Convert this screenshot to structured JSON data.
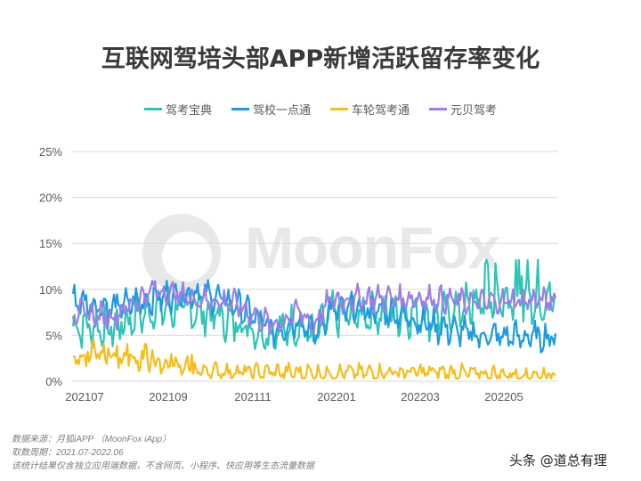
{
  "title": "互联网驾培头部APP新增活跃留存率变化",
  "legend": [
    {
      "label": "驾考宝典",
      "color": "#2EC4B6"
    },
    {
      "label": "驾校一点通",
      "color": "#1E9BE0"
    },
    {
      "label": "车轮驾考通",
      "color": "#F5BD1F"
    },
    {
      "label": "元贝驾考",
      "color": "#9B7EE6"
    }
  ],
  "watermark": "MoonFox",
  "footnote": {
    "source": "数据来源：月狐iAPP （MoonFox iApp）",
    "period": "取数周期：2021.07-2022.06",
    "note": "该统计结果仅含独立应用端数据，不含网页、小程序、快应用等生态流量数据"
  },
  "signature": "头条 @道总有理",
  "chart_data": {
    "type": "line",
    "title": "互联网驾培头部APP新增活跃留存率变化",
    "xlabel": "",
    "ylabel": "",
    "ylim": [
      0,
      25
    ],
    "yticks": [
      "0%",
      "5%",
      "10%",
      "15%",
      "20%",
      "25%"
    ],
    "xticks": [
      "202107",
      "202109",
      "202111",
      "202201",
      "202203",
      "202205"
    ],
    "x_range": [
      "2021-07-01",
      "2022-06-30"
    ],
    "granularity": "daily",
    "grid": true,
    "legend_position": "top",
    "series": [
      {
        "name": "驾考宝典",
        "color": "#2EC4B6",
        "approx_monthly_avg": [
          6.0,
          5.8,
          8.0,
          7.8,
          6.5,
          5.0,
          7.0,
          7.2,
          7.5,
          7.0,
          8.5,
          9.0
        ],
        "range": [
          3.5,
          13.2
        ]
      },
      {
        "name": "驾校一点通",
        "color": "#1E9BE0",
        "approx_monthly_avg": [
          8.8,
          8.0,
          9.0,
          9.8,
          8.5,
          5.5,
          7.5,
          7.8,
          7.5,
          6.0,
          5.0,
          4.8
        ],
        "range": [
          2.5,
          11.0
        ]
      },
      {
        "name": "车轮驾考通",
        "color": "#F5BD1F",
        "approx_monthly_avg": [
          2.5,
          2.6,
          1.8,
          1.2,
          1.0,
          1.0,
          0.9,
          0.9,
          1.0,
          1.0,
          0.8,
          0.7
        ],
        "range": [
          0.3,
          4.8
        ]
      },
      {
        "name": "元贝驾考",
        "color": "#9B7EE6",
        "approx_monthly_avg": [
          7.5,
          7.0,
          10.0,
          9.0,
          8.5,
          6.0,
          8.5,
          9.0,
          9.0,
          9.0,
          8.5,
          8.8
        ],
        "range": [
          4.0,
          12.0
        ]
      }
    ]
  }
}
